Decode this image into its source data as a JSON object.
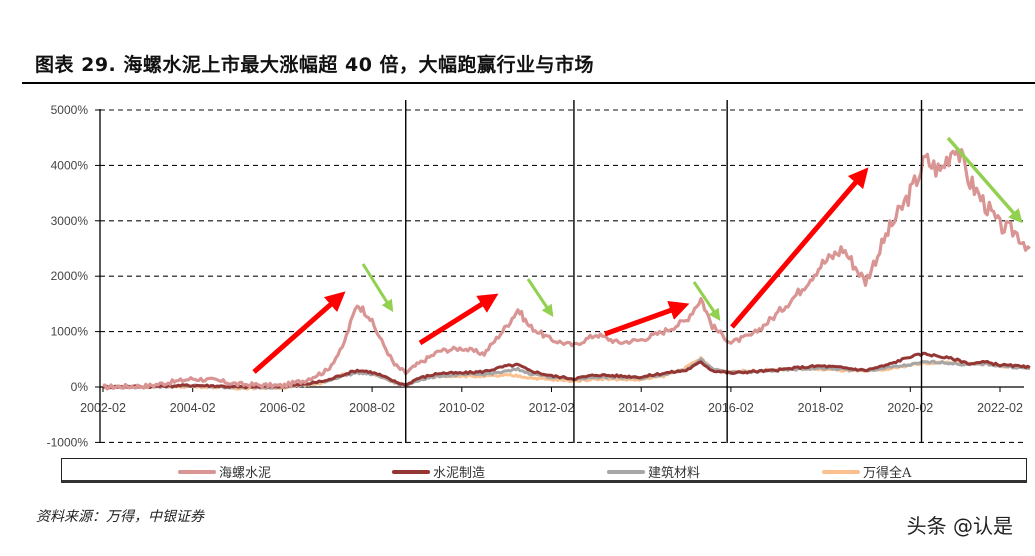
{
  "title": "图表 29. 海螺水泥上市最大涨幅超 40 倍，大幅跑赢行业与市场",
  "source": "资料来源：万得，中银证券",
  "watermark": "头条 @认是",
  "legend": [
    {
      "label": "海螺水泥",
      "color": "#d99594"
    },
    {
      "label": "水泥制造",
      "color": "#943634"
    },
    {
      "label": "建筑材料",
      "color": "#a6a6a6"
    },
    {
      "label": "万得全A",
      "color": "#fac090"
    }
  ],
  "chart_data": {
    "type": "line",
    "title": "图表 29. 海螺水泥上市最大涨幅超 40 倍，大幅跑赢行业与市场",
    "xlabel": "",
    "ylabel": "",
    "ylim": [
      -1000,
      5000
    ],
    "y_ticks": [
      "5000%",
      "4000%",
      "3000%",
      "2000%",
      "1000%",
      "0%",
      "-1000%"
    ],
    "x_ticks": [
      "2002-02",
      "2004-02",
      "2006-02",
      "2008-02",
      "2010-02",
      "2012-02",
      "2014-02",
      "2016-02",
      "2018-02",
      "2020-02",
      "2022-02"
    ],
    "grid": "horizontal dashed",
    "legend_position": "bottom",
    "x": [
      "2002-02",
      "2003-02",
      "2004-02",
      "2004-08",
      "2005-02",
      "2006-02",
      "2006-08",
      "2007-02",
      "2007-06",
      "2007-10",
      "2008-01",
      "2008-04",
      "2008-08",
      "2008-11",
      "2009-02",
      "2009-08",
      "2010-02",
      "2010-08",
      "2011-02",
      "2011-05",
      "2011-08",
      "2012-02",
      "2012-08",
      "2013-02",
      "2013-08",
      "2014-02",
      "2014-08",
      "2015-02",
      "2015-06",
      "2015-09",
      "2016-02",
      "2016-08",
      "2017-02",
      "2017-08",
      "2018-02",
      "2018-08",
      "2019-02",
      "2019-08",
      "2020-02",
      "2020-06",
      "2020-10",
      "2021-02",
      "2021-06",
      "2021-10",
      "2022-02",
      "2022-06",
      "2022-10"
    ],
    "series": [
      {
        "name": "海螺水泥",
        "color": "#d99594",
        "values": [
          0,
          20,
          150,
          120,
          50,
          20,
          120,
          300,
          700,
          1500,
          1300,
          900,
          400,
          250,
          400,
          650,
          700,
          600,
          1100,
          1400,
          1100,
          850,
          750,
          950,
          800,
          850,
          1000,
          1200,
          1600,
          1100,
          800,
          950,
          1300,
          1700,
          2200,
          2500,
          1900,
          2800,
          3500,
          4100,
          3900,
          4400,
          3700,
          3300,
          2900,
          2800,
          2500
        ]
      },
      {
        "name": "水泥制造",
        "color": "#943634",
        "values": [
          0,
          10,
          30,
          20,
          0,
          10,
          50,
          120,
          220,
          300,
          280,
          220,
          100,
          30,
          150,
          250,
          250,
          280,
          380,
          400,
          300,
          200,
          150,
          220,
          200,
          180,
          250,
          300,
          450,
          300,
          250,
          280,
          300,
          350,
          380,
          350,
          300,
          400,
          550,
          600,
          550,
          500,
          420,
          450,
          400,
          380,
          350
        ]
      },
      {
        "name": "建筑材料",
        "color": "#a6a6a6",
        "values": [
          0,
          5,
          20,
          10,
          -10,
          0,
          40,
          110,
          200,
          260,
          240,
          200,
          80,
          20,
          120,
          200,
          220,
          230,
          280,
          320,
          250,
          180,
          140,
          180,
          170,
          160,
          230,
          320,
          500,
          320,
          260,
          270,
          300,
          320,
          340,
          320,
          290,
          350,
          400,
          450,
          450,
          420,
          400,
          420,
          380,
          360,
          330
        ]
      },
      {
        "name": "万得全A",
        "color": "#fac090",
        "values": [
          0,
          5,
          10,
          0,
          -20,
          -10,
          30,
          100,
          220,
          280,
          250,
          200,
          80,
          30,
          130,
          200,
          200,
          190,
          210,
          200,
          170,
          130,
          110,
          150,
          140,
          130,
          200,
          350,
          520,
          320,
          280,
          290,
          310,
          330,
          320,
          300,
          280,
          320,
          400,
          430,
          440,
          450,
          420,
          420,
          380,
          370,
          360
        ]
      }
    ],
    "annotations": {
      "vertical_separators": [
        "2008-11",
        "2012-08",
        "2016-01",
        "2020-05"
      ],
      "red_arrows_up": 4,
      "green_arrows_down": 4
    }
  }
}
